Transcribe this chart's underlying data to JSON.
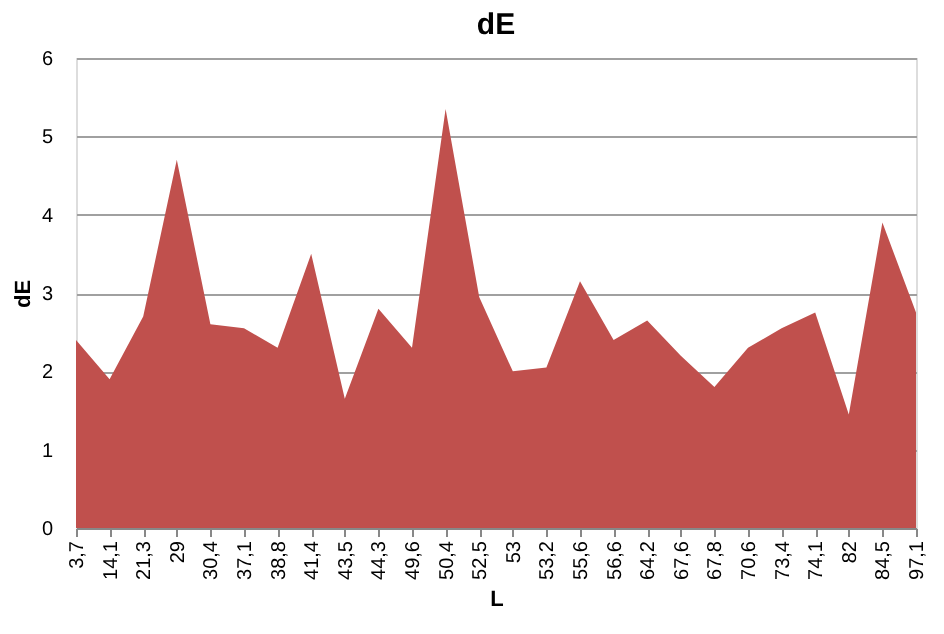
{
  "chart_data": {
    "type": "area",
    "title": "dE",
    "xlabel": "L",
    "ylabel": "dE",
    "categories": [
      "3,7",
      "14,1",
      "21,3",
      "29",
      "30,4",
      "37,1",
      "38,8",
      "41,4",
      "43,5",
      "44,3",
      "49,6",
      "50,4",
      "52,5",
      "53",
      "53,2",
      "55,6",
      "56,6",
      "64,2",
      "67,6",
      "67,8",
      "70,6",
      "73,4",
      "74,1",
      "82",
      "84,5",
      "97,1"
    ],
    "series": [
      {
        "color": "#c0504d",
        "values": [
          2.4,
          1.9,
          2.7,
          4.7,
          2.6,
          2.55,
          2.3,
          3.5,
          1.65,
          2.8,
          2.3,
          5.35,
          2.95,
          2.0,
          2.05,
          3.15,
          2.4,
          2.65,
          2.2,
          1.8,
          2.3,
          2.55,
          2.75,
          1.45,
          3.9,
          2.75
        ]
      }
    ],
    "ylim": [
      0,
      6
    ],
    "yticks": [
      0,
      1,
      2,
      3,
      4,
      5,
      6
    ],
    "grid": "y"
  }
}
